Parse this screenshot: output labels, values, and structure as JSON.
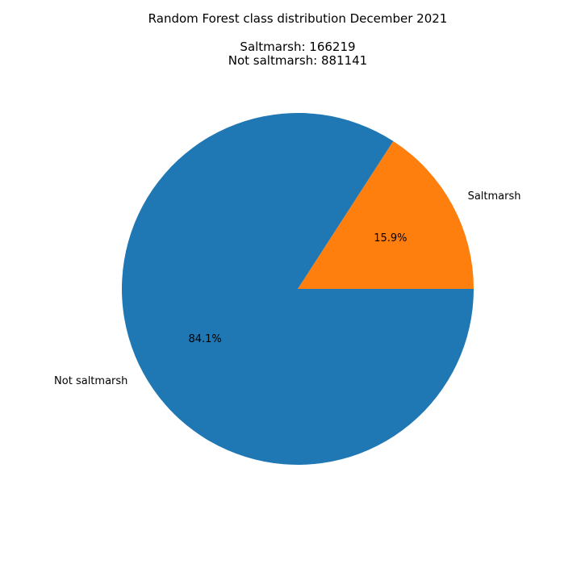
{
  "chart_data": {
    "type": "pie",
    "title": "Random Forest class distribution December 2021",
    "subtitle_lines": [
      "Saltmarsh: 166219",
      "Not saltmarsh: 881141"
    ],
    "slices": [
      {
        "label": "Saltmarsh",
        "value": 166219,
        "percent_label": "15.9%",
        "color": "#ff7f0e"
      },
      {
        "label": "Not saltmarsh",
        "value": 881141,
        "percent_label": "84.1%",
        "color": "#1f77b4"
      }
    ],
    "start_angle_deg": 0,
    "direction": "counterclockwise"
  }
}
